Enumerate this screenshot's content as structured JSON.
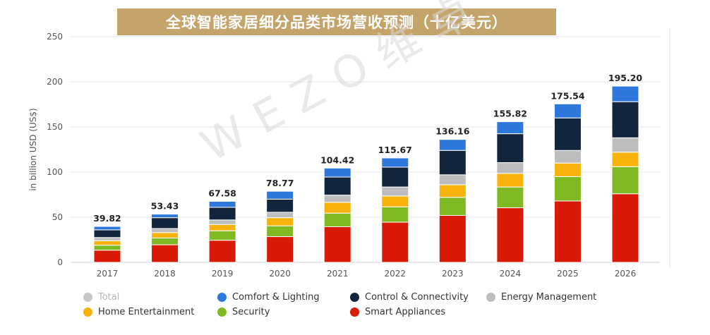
{
  "title": "全球智能家居细分品类市场营收预测（十亿美元）",
  "watermark": "WEZO维卓",
  "colors": {
    "title_bg": "#c4a46a",
    "total": "#c8c8c8",
    "comfort_lighting": "#2f78db",
    "control_connectivity": "#13243d",
    "energy_management": "#bdbdbd",
    "home_entertainment": "#f9b10c",
    "security": "#7fba25",
    "smart_appliances": "#d81a06"
  },
  "legend": [
    {
      "key": "total",
      "label": "Total",
      "muted": true
    },
    {
      "key": "comfort_lighting",
      "label": "Comfort & Lighting"
    },
    {
      "key": "control_connectivity",
      "label": "Control & Connectivity"
    },
    {
      "key": "energy_management",
      "label": "Energy Management"
    },
    {
      "key": "home_entertainment",
      "label": "Home Entertainment"
    },
    {
      "key": "security",
      "label": "Security"
    },
    {
      "key": "smart_appliances",
      "label": "Smart Appliances"
    }
  ],
  "chart_data": {
    "type": "bar",
    "stacked": true,
    "ylabel": "in billion USD (US$)",
    "ylim": [
      0,
      250
    ],
    "yticks": [
      0,
      50,
      100,
      150,
      200,
      250
    ],
    "categories": [
      "2017",
      "2018",
      "2019",
      "2020",
      "2021",
      "2022",
      "2023",
      "2024",
      "2025",
      "2026"
    ],
    "totals": [
      "39.82",
      "53.43",
      "67.58",
      "78.77",
      "104.42",
      "115.67",
      "136.16",
      "155.82",
      "175.54",
      "195.20"
    ],
    "series": [
      {
        "name": "Smart Appliances",
        "key": "smart_appliances",
        "values": [
          13.5,
          19.5,
          24.5,
          28.5,
          39.5,
          44.5,
          52,
          60.5,
          68,
          76
        ]
      },
      {
        "name": "Security",
        "key": "security",
        "values": [
          5.5,
          7.5,
          10.5,
          12,
          15,
          17,
          20,
          23,
          27,
          30
        ]
      },
      {
        "name": "Home Entertainment",
        "key": "home_entertainment",
        "values": [
          5,
          6,
          7,
          9,
          12,
          12,
          14,
          15,
          15,
          16
        ]
      },
      {
        "name": "Energy Management",
        "key": "energy_management",
        "values": [
          3.5,
          4.5,
          5,
          6,
          8,
          10,
          11,
          12,
          14,
          16
        ]
      },
      {
        "name": "Control & Connectivity",
        "key": "control_connectivity",
        "values": [
          8.5,
          12,
          14,
          14.5,
          20,
          22,
          27,
          32,
          36,
          40
        ]
      },
      {
        "name": "Comfort & Lighting",
        "key": "comfort_lighting",
        "values": [
          3.82,
          3.93,
          6.58,
          8.77,
          9.92,
          10.17,
          12.16,
          13.32,
          15.54,
          17.2
        ]
      }
    ]
  }
}
